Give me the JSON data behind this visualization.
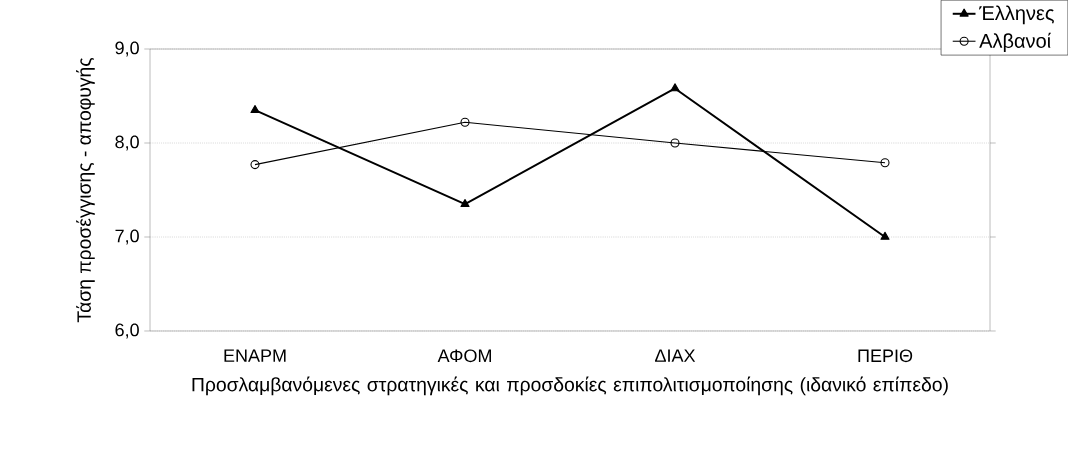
{
  "chart_data": {
    "type": "line",
    "categories": [
      "ΕΝΑΡΜ",
      "ΑΦΟΜ",
      "ΔΙΑΧ",
      "ΠΕΡΙΘ"
    ],
    "series": [
      {
        "name": "Έλληνες",
        "color": "#000000",
        "marker": "triangle",
        "values": [
          8.35,
          7.35,
          8.58,
          7.0
        ]
      },
      {
        "name": "Αλβανοί",
        "color": "#000000",
        "marker": "circle",
        "values": [
          7.77,
          8.22,
          8.0,
          7.79
        ]
      }
    ],
    "xlabel": "Προσλαμβανόμενες στρατηγικές και προσδοκίες επιπολιτισμοποίησης (ιδανικό επίπεδο)",
    "ylabel": "Τάση προσέγγισης - αποφυγής",
    "ylim": [
      6,
      9
    ],
    "yticks": [
      {
        "value": 6,
        "label": "6,0"
      },
      {
        "value": 7,
        "label": "7,0"
      },
      {
        "value": 8,
        "label": "8,0"
      },
      {
        "value": 9,
        "label": "9,0"
      }
    ],
    "grid": "y",
    "legend": "top right",
    "line_style": "solid"
  }
}
